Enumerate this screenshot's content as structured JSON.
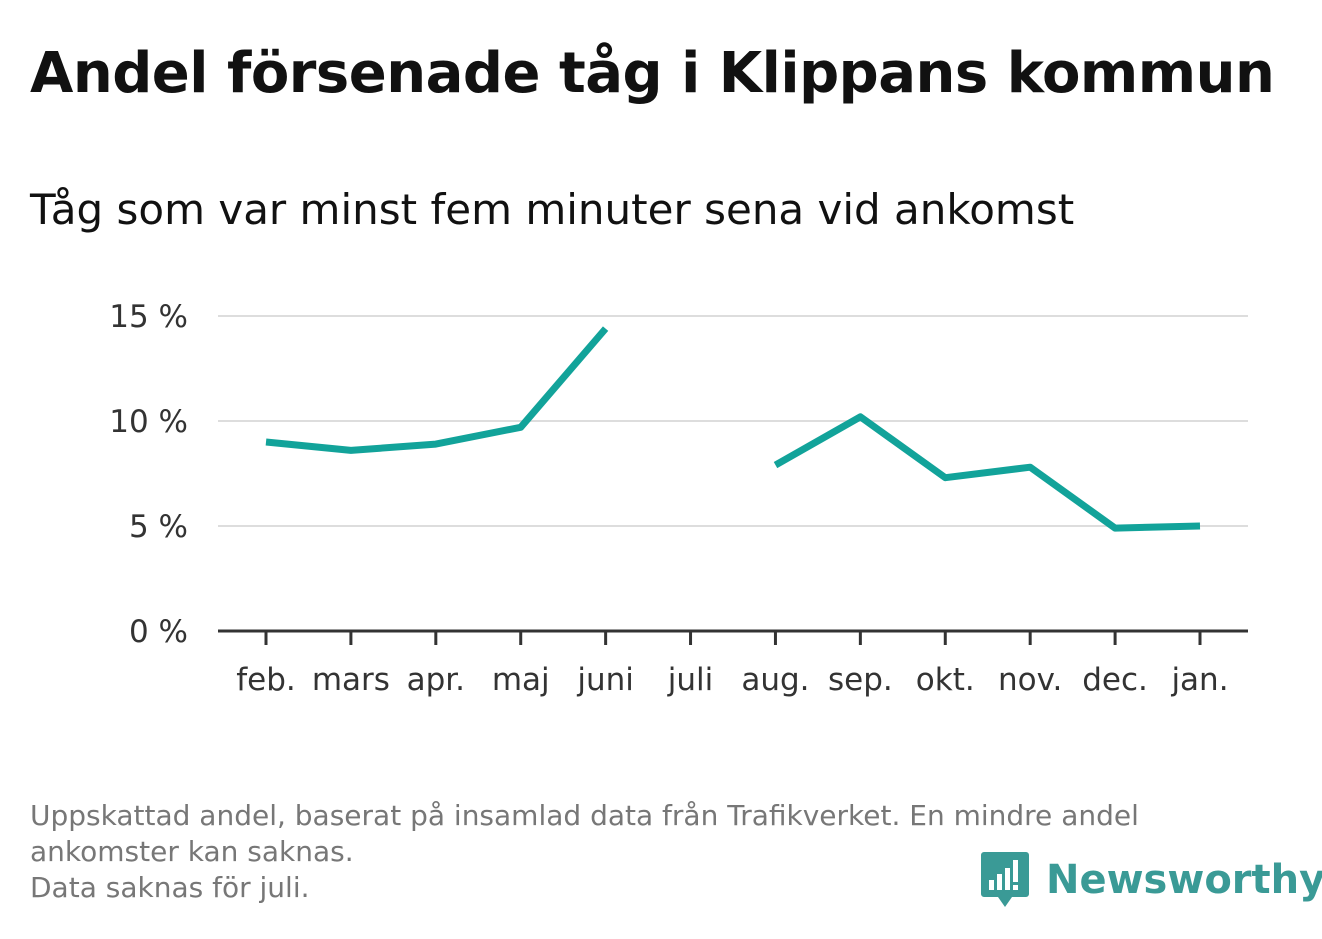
{
  "header": {
    "title": "Andel försenade tåg i Klippans kommun",
    "subtitle": "Tåg som var minst fem minuter sena vid ankomst"
  },
  "footnote": {
    "line1": "Uppskattad andel, baserat på insamlad data från Trafikverket. En mindre andel",
    "line2": "ankomster kan saknas.",
    "line3": "Data saknas för juli."
  },
  "brand": {
    "name": "Newsworthy",
    "icon": "newsworthy-logo-icon",
    "color": "#3a9a96"
  },
  "colors": {
    "line": "#12a39a",
    "grid": "#dddddd",
    "axis": "#333333"
  },
  "chart_data": {
    "type": "line",
    "title": "Andel försenade tåg i Klippans kommun",
    "subtitle": "Tåg som var minst fem minuter sena vid ankomst",
    "xlabel": "",
    "ylabel": "",
    "categories": [
      "feb.",
      "mars",
      "apr.",
      "maj",
      "juni",
      "juli",
      "aug.",
      "sep.",
      "okt.",
      "nov.",
      "dec.",
      "jan."
    ],
    "values": [
      9.0,
      8.6,
      8.9,
      9.7,
      14.4,
      null,
      7.9,
      10.2,
      7.3,
      7.8,
      4.9,
      5.0
    ],
    "ylim": [
      0,
      15
    ],
    "yticks": [
      0,
      5,
      10,
      15
    ],
    "ytick_labels": [
      "0 %",
      "5 %",
      "10 %",
      "15 %"
    ],
    "grid": true,
    "legend": "none"
  }
}
